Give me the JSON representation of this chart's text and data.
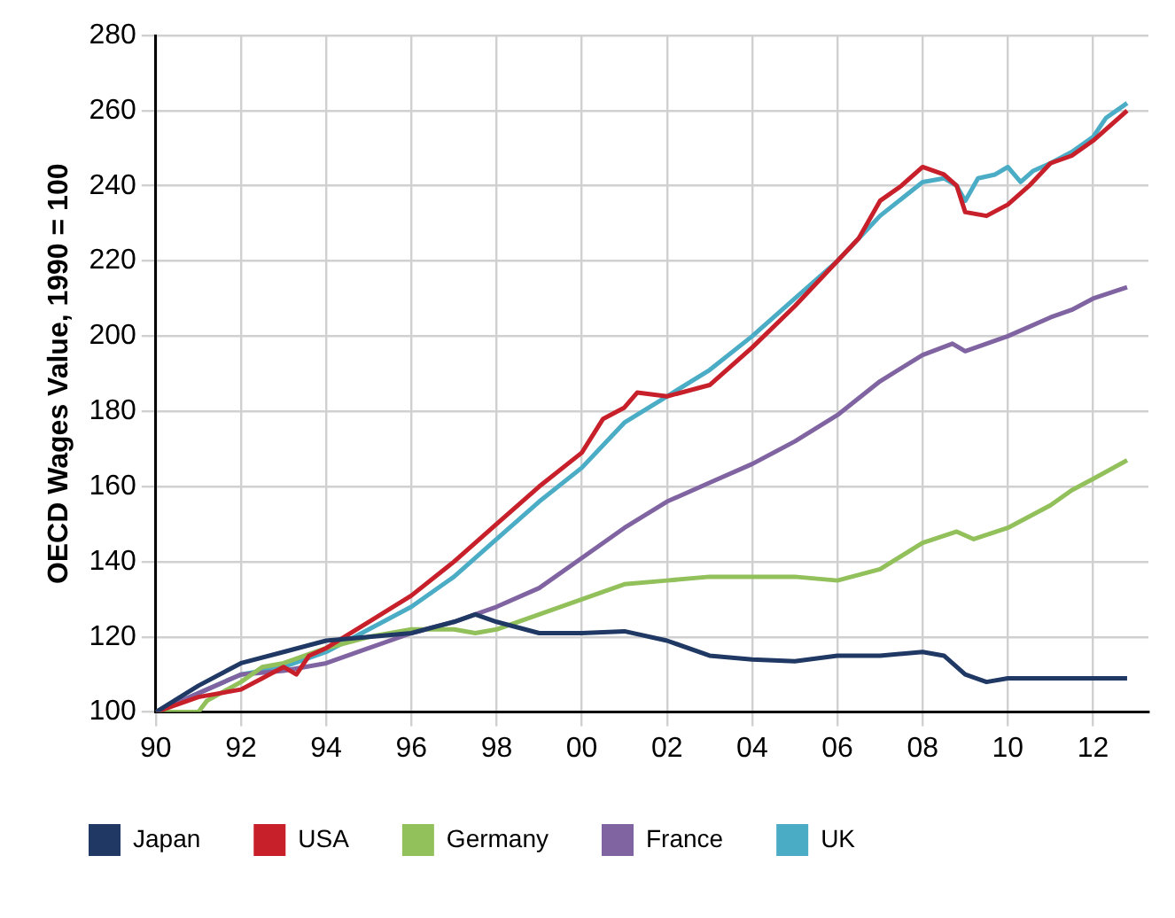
{
  "chart_data": {
    "type": "line",
    "ylabel": "OECD Wages Value, 1990 = 100",
    "xlim": [
      1990,
      2013.3
    ],
    "xticks": [
      {
        "value": 1990,
        "label": "90"
      },
      {
        "value": 1992,
        "label": "92"
      },
      {
        "value": 1994,
        "label": "94"
      },
      {
        "value": 1996,
        "label": "96"
      },
      {
        "value": 1998,
        "label": "98"
      },
      {
        "value": 2000,
        "label": "00"
      },
      {
        "value": 2002,
        "label": "02"
      },
      {
        "value": 2004,
        "label": "04"
      },
      {
        "value": 2006,
        "label": "06"
      },
      {
        "value": 2008,
        "label": "08"
      },
      {
        "value": 2010,
        "label": "10"
      },
      {
        "value": 2012,
        "label": "12"
      }
    ],
    "ylim": [
      100,
      280
    ],
    "yticks": [
      100,
      120,
      140,
      160,
      180,
      200,
      220,
      240,
      260,
      280
    ],
    "grid": true,
    "legend": "bottom",
    "marker": "none",
    "line_style": "solid",
    "series": [
      {
        "name": "Japan",
        "color": "#1f3864",
        "x": [
          1990,
          1991,
          1992,
          1993,
          1994,
          1995,
          1996,
          1997,
          1997.5,
          1998,
          1999,
          2000,
          2001,
          2002,
          2003,
          2004,
          2005,
          2006,
          2007,
          2008,
          2008.5,
          2009,
          2009.5,
          2010,
          2011,
          2012,
          2012.8
        ],
        "values": [
          100,
          107,
          113,
          116,
          119,
          120,
          121,
          124,
          126,
          124,
          121,
          121,
          121.5,
          119,
          115,
          114,
          113.5,
          115,
          115,
          116,
          115,
          110,
          108,
          109,
          109,
          109,
          109
        ]
      },
      {
        "name": "USA",
        "color": "#c8202a",
        "x": [
          1990,
          1991,
          1992,
          1992.5,
          1993,
          1993.3,
          1993.6,
          1994,
          1995,
          1996,
          1997,
          1998,
          1999,
          2000,
          2000.5,
          2001,
          2001.3,
          2002,
          2003,
          2004,
          2005,
          2006,
          2006.5,
          2007,
          2007.5,
          2008,
          2008.5,
          2008.8,
          2009,
          2009.5,
          2010,
          2010.5,
          2011,
          2011.5,
          2012,
          2012.8
        ],
        "values": [
          100,
          104,
          106,
          109,
          112,
          110,
          115,
          117,
          124,
          131,
          140,
          150,
          160,
          169,
          178,
          181,
          185,
          184,
          187,
          197,
          208,
          220,
          226,
          236,
          240,
          245,
          243,
          240,
          233,
          232,
          235,
          240,
          246,
          248,
          252,
          260
        ]
      },
      {
        "name": "Germany",
        "color": "#92c05a",
        "x": [
          1990,
          1991,
          1991.2,
          1992,
          1992.5,
          1993,
          1994,
          1995,
          1996,
          1997,
          1997.5,
          1998,
          1999,
          2000,
          2001,
          2002,
          2003,
          2004,
          2005,
          2006,
          2007,
          2008,
          2008.8,
          2009.2,
          2010,
          2011,
          2011.5,
          2012,
          2012.8
        ],
        "values": [
          100,
          100,
          103,
          108,
          112,
          113,
          117,
          120,
          122,
          122,
          121,
          122,
          126,
          130,
          134,
          135,
          136,
          136,
          136,
          135,
          138,
          145,
          148,
          146,
          149,
          155,
          159,
          162,
          167
        ]
      },
      {
        "name": "France",
        "color": "#8064a2",
        "x": [
          1990,
          1991,
          1992,
          1993,
          1994,
          1995,
          1996,
          1997,
          1998,
          1999,
          2000,
          2001,
          2002,
          2003,
          2004,
          2005,
          2006,
          2007,
          2008,
          2008.7,
          2009,
          2010,
          2011,
          2011.5,
          2012,
          2012.8
        ],
        "values": [
          100,
          105,
          110,
          111,
          113,
          117,
          121,
          124,
          128,
          133,
          141,
          149,
          156,
          161,
          166,
          172,
          179,
          188,
          195,
          198,
          196,
          200,
          205,
          207,
          210,
          213
        ]
      },
      {
        "name": "UK",
        "color": "#4bacc6",
        "x": [
          1990,
          1991,
          1992,
          1993,
          1994,
          1995,
          1996,
          1997,
          1998,
          1999,
          2000,
          2001,
          2002,
          2003,
          2004,
          2005,
          2006,
          2007,
          2008,
          2008.5,
          2008.8,
          2009,
          2009.3,
          2009.7,
          2010,
          2010.3,
          2010.6,
          2011,
          2011.5,
          2012,
          2012.3,
          2012.8
        ],
        "values": [
          100,
          105,
          110,
          112,
          116,
          122,
          128,
          136,
          146,
          156,
          165,
          177,
          184,
          191,
          200,
          210,
          220,
          232,
          241,
          242,
          240,
          236,
          242,
          243,
          245,
          241,
          244,
          246,
          249,
          253,
          258,
          262
        ]
      }
    ]
  }
}
